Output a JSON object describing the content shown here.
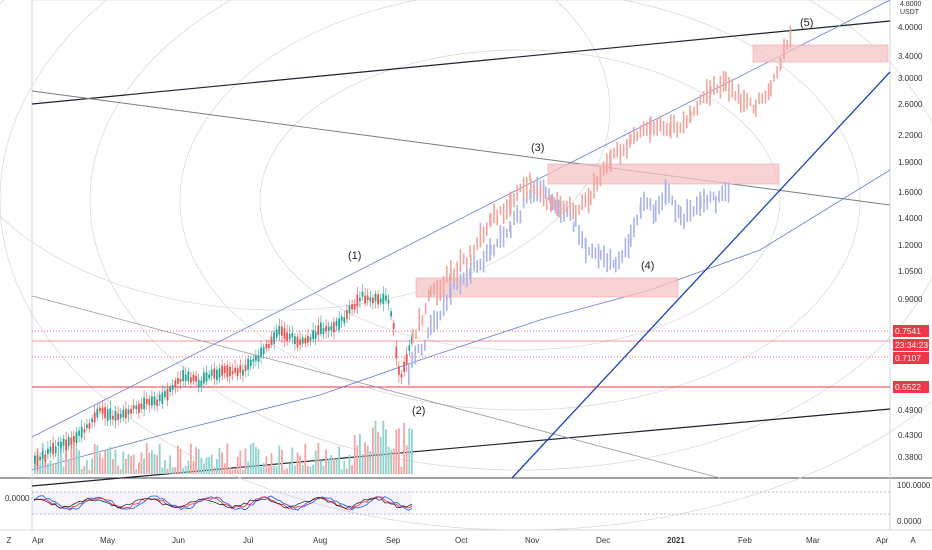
{
  "price_axis": {
    "currency": "USDT",
    "ticks": [
      "4.8000",
      "4.0000",
      "3.4000",
      "3.0000",
      "2.6000",
      "2.2000",
      "1.9000",
      "1.6000",
      "1.4000",
      "1.2000",
      "1.0500",
      "0.9000",
      "0.4900",
      "0.4300",
      "0.3800"
    ]
  },
  "time_axis": {
    "ticks": [
      "Apr",
      "May",
      "Jun",
      "Jul",
      "Aug",
      "Sep",
      "Oct",
      "Nov",
      "Dec",
      "2021",
      "Feb",
      "Mar",
      "Apr"
    ]
  },
  "price_labels": [
    {
      "text": "0.7541",
      "color": "#f23645"
    },
    {
      "text": "23:34:23",
      "color": "#f23645"
    },
    {
      "text": "0.7107",
      "color": "#f23645"
    },
    {
      "text": "0.5522",
      "color": "#f23645"
    }
  ],
  "wave_labels": [
    "(1)",
    "(2)",
    "(3)",
    "(4)",
    "(5)"
  ],
  "indicator": {
    "left_value": "0.0000",
    "axis_ticks": [
      "100.0000",
      "0.0000"
    ]
  },
  "corner_buttons": {
    "left": "Z",
    "right": "A"
  },
  "colors": {
    "up": "#26a69a",
    "down": "#ef5350",
    "projection_up": "#aab4ea",
    "projection_down": "#f3a49c",
    "zone": "#f5c4c4",
    "channel": "#6b7fd6",
    "trend_blue": "#1a44b8"
  }
}
